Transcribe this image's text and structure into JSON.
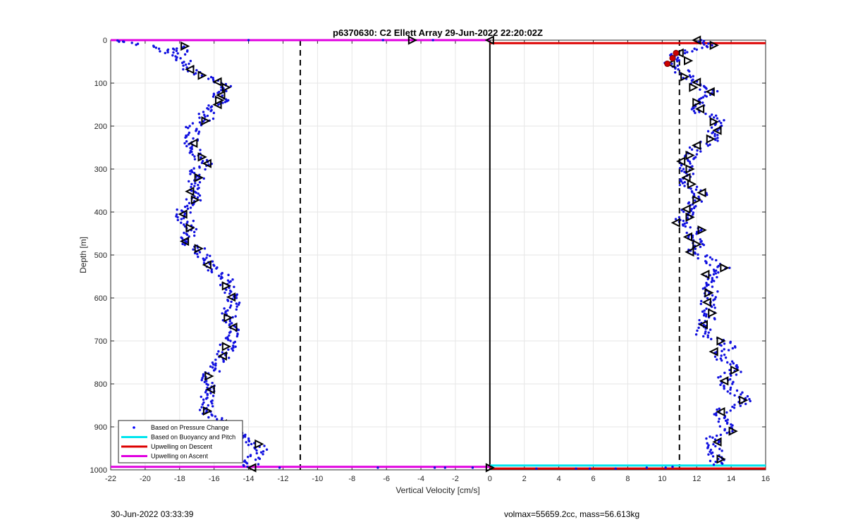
{
  "footer": {
    "left": "30-Jun-2022 03:33:39",
    "right": "volmax=55659.2cc, mass=56.613kg"
  },
  "chart_data": {
    "type": "scatter",
    "title": "p6370630: C2 Ellett Array 29-Jun-2022 22:20:02Z",
    "xlabel": "Vertical Velocity [cm/s]",
    "ylabel": "Depth [m]",
    "xlim": [
      -22,
      16
    ],
    "ylim": [
      0,
      1000
    ],
    "y_reversed": true,
    "grid": true,
    "x_ticks": [
      "-22",
      "-20",
      "-18",
      "-16",
      "-14",
      "-12",
      "-10",
      "-8",
      "-6",
      "-4",
      "-2",
      "0",
      "2",
      "4",
      "6",
      "8",
      "10",
      "12",
      "14",
      "16"
    ],
    "y_ticks": [
      "0",
      "100",
      "200",
      "300",
      "400",
      "500",
      "600",
      "700",
      "800",
      "900",
      "1000"
    ],
    "legend": {
      "placement": "bottom-left",
      "entries": [
        {
          "label": "Based on Pressure Change",
          "color": "#0000ff",
          "style": "dot"
        },
        {
          "label": "Based on Buoyancy and Pitch",
          "color": "#00e5ee",
          "style": "line"
        },
        {
          "label": "Upwelling on Descent",
          "color": "#dd0000",
          "style": "line"
        },
        {
          "label": "Upwelling on Ascent",
          "color": "#e000e0",
          "style": "line"
        }
      ]
    },
    "reference_lines": [
      {
        "x": -11,
        "style": "dashed",
        "color": "#000000"
      },
      {
        "x": 11,
        "style": "dashed",
        "color": "#000000"
      },
      {
        "x": 0,
        "style": "solid",
        "color": "#000000"
      }
    ],
    "horizontal_lines": [
      {
        "y": 0,
        "x": [
          -22,
          0
        ],
        "color": "#e000e0",
        "series": "Upwelling on Ascent"
      },
      {
        "y": 993,
        "x": [
          -22,
          0
        ],
        "color": "#e000e0",
        "series": "Upwelling on Ascent"
      },
      {
        "y": 7,
        "x": [
          0,
          16
        ],
        "color": "#dd0000",
        "series": "Upwelling on Descent"
      },
      {
        "y": 990,
        "x": [
          0,
          16
        ],
        "color": "#00e5ee",
        "series": "Based on Buoyancy and Pitch"
      },
      {
        "y": 997,
        "x": [
          0,
          16
        ],
        "color": "#dd0000",
        "series": "Upwelling on Descent"
      }
    ],
    "ascent_profile": [
      [
        -21.5,
        3
      ],
      [
        -21,
        4
      ],
      [
        -19,
        20
      ],
      [
        -18.6,
        30
      ],
      [
        -17.8,
        15
      ],
      [
        -18.2,
        40
      ],
      [
        -17.5,
        55
      ],
      [
        -17.4,
        70
      ],
      [
        -16.8,
        82
      ],
      [
        -15.8,
        92
      ],
      [
        -15.5,
        100
      ],
      [
        -15.4,
        112
      ],
      [
        -15.8,
        125
      ],
      [
        -15.6,
        140
      ],
      [
        -15.8,
        150
      ],
      [
        -16.4,
        165
      ],
      [
        -16.5,
        185
      ],
      [
        -17.2,
        200
      ],
      [
        -17.2,
        220
      ],
      [
        -17.3,
        240
      ],
      [
        -17.0,
        260
      ],
      [
        -16.7,
        275
      ],
      [
        -16.5,
        290
      ],
      [
        -17.0,
        305
      ],
      [
        -16.9,
        320
      ],
      [
        -17.3,
        335
      ],
      [
        -17.3,
        355
      ],
      [
        -17.2,
        375
      ],
      [
        -17.7,
        390
      ],
      [
        -17.9,
        410
      ],
      [
        -17.5,
        425
      ],
      [
        -17.4,
        440
      ],
      [
        -17.5,
        455
      ],
      [
        -17.6,
        470
      ],
      [
        -16.9,
        485
      ],
      [
        -16.6,
        500
      ],
      [
        -16.3,
        515
      ],
      [
        -16.4,
        525
      ],
      [
        -15.8,
        540
      ],
      [
        -15.3,
        555
      ],
      [
        -15.3,
        572
      ],
      [
        -15.0,
        590
      ],
      [
        -14.8,
        600
      ],
      [
        -15.0,
        620
      ],
      [
        -15.2,
        645
      ],
      [
        -14.8,
        668
      ],
      [
        -14.6,
        685
      ],
      [
        -15.2,
        700
      ],
      [
        -15.2,
        718
      ],
      [
        -15.5,
        735
      ],
      [
        -15.7,
        755
      ],
      [
        -16.3,
        780
      ],
      [
        -16.4,
        800
      ],
      [
        -16.2,
        813
      ],
      [
        -16.4,
        830
      ],
      [
        -16.3,
        850
      ],
      [
        -16.4,
        865
      ],
      [
        -15.8,
        880
      ],
      [
        -15.6,
        895
      ],
      [
        -14.8,
        910
      ],
      [
        -14.2,
        925
      ],
      [
        -13.6,
        940
      ],
      [
        -13.3,
        955
      ],
      [
        -13.6,
        970
      ],
      [
        -13.9,
        985
      ],
      [
        -13.8,
        995
      ]
    ],
    "ascent_markers": [
      [
        -17.7,
        14
      ],
      [
        -17.4,
        68
      ],
      [
        -16.7,
        82
      ],
      [
        -15.8,
        97
      ],
      [
        -15.3,
        110
      ],
      [
        -15.6,
        128
      ],
      [
        -15.7,
        140
      ],
      [
        -15.8,
        150
      ],
      [
        -16.5,
        188
      ],
      [
        -17.2,
        240
      ],
      [
        -16.7,
        272
      ],
      [
        -16.4,
        287
      ],
      [
        -16.9,
        320
      ],
      [
        -17.4,
        352
      ],
      [
        -17.1,
        372
      ],
      [
        -17.8,
        405
      ],
      [
        -17.4,
        437
      ],
      [
        -17.7,
        468
      ],
      [
        -16.9,
        485
      ],
      [
        -16.4,
        523
      ],
      [
        -15.3,
        572
      ],
      [
        -15.0,
        598
      ],
      [
        -15.2,
        646
      ],
      [
        -14.9,
        668
      ],
      [
        -15.3,
        713
      ],
      [
        -15.5,
        735
      ],
      [
        -16.3,
        782
      ],
      [
        -16.2,
        813
      ],
      [
        -16.4,
        863
      ],
      [
        -15.5,
        893
      ],
      [
        -13.4,
        940
      ],
      [
        -13.8,
        995
      ],
      [
        -4.5,
        0
      ],
      [
        0,
        0
      ],
      [
        0,
        995
      ]
    ],
    "descent_profile": [
      [
        12.2,
        0
      ],
      [
        12.7,
        8
      ],
      [
        13.0,
        14
      ],
      [
        11.7,
        20
      ],
      [
        11.3,
        28
      ],
      [
        10.8,
        35
      ],
      [
        10.6,
        45
      ],
      [
        10.4,
        55
      ],
      [
        11.1,
        68
      ],
      [
        11.3,
        82
      ],
      [
        11.6,
        92
      ],
      [
        12.0,
        105
      ],
      [
        12.6,
        115
      ],
      [
        13.0,
        125
      ],
      [
        12.5,
        135
      ],
      [
        12.3,
        150
      ],
      [
        12.0,
        165
      ],
      [
        13.0,
        180
      ],
      [
        13.5,
        195
      ],
      [
        12.8,
        212
      ],
      [
        12.9,
        232
      ],
      [
        12.0,
        250
      ],
      [
        11.7,
        268
      ],
      [
        11.4,
        285
      ],
      [
        11.5,
        300
      ],
      [
        11.4,
        318
      ],
      [
        11.4,
        335
      ],
      [
        11.9,
        350
      ],
      [
        12.3,
        360
      ],
      [
        11.8,
        380
      ],
      [
        11.5,
        395
      ],
      [
        11.3,
        410
      ],
      [
        11.1,
        425
      ],
      [
        12.1,
        440
      ],
      [
        11.5,
        455
      ],
      [
        12.2,
        470
      ],
      [
        11.7,
        490
      ],
      [
        12.6,
        510
      ],
      [
        13.5,
        530
      ],
      [
        13.0,
        545
      ],
      [
        12.8,
        565
      ],
      [
        12.8,
        585
      ],
      [
        12.6,
        605
      ],
      [
        12.7,
        625
      ],
      [
        12.7,
        645
      ],
      [
        12.4,
        665
      ],
      [
        12.4,
        685
      ],
      [
        13.5,
        700
      ],
      [
        13.9,
        715
      ],
      [
        13.2,
        730
      ],
      [
        13.8,
        750
      ],
      [
        14.2,
        770
      ],
      [
        13.7,
        785
      ],
      [
        13.7,
        800
      ],
      [
        14.3,
        820
      ],
      [
        14.8,
        840
      ],
      [
        13.6,
        860
      ],
      [
        13.4,
        875
      ],
      [
        13.5,
        890
      ],
      [
        14.0,
        910
      ],
      [
        13.0,
        925
      ],
      [
        13.0,
        945
      ],
      [
        13.1,
        960
      ],
      [
        13.2,
        975
      ],
      [
        13.0,
        990
      ]
    ],
    "descent_markers": [
      [
        12.0,
        0
      ],
      [
        13.0,
        12
      ],
      [
        11.0,
        30
      ],
      [
        11.5,
        48
      ],
      [
        10.5,
        55
      ],
      [
        11.3,
        85
      ],
      [
        12.0,
        98
      ],
      [
        11.8,
        110
      ],
      [
        12.8,
        120
      ],
      [
        12.0,
        145
      ],
      [
        12.2,
        160
      ],
      [
        13.0,
        190
      ],
      [
        13.2,
        210
      ],
      [
        12.8,
        230
      ],
      [
        12.0,
        245
      ],
      [
        11.6,
        268
      ],
      [
        11.1,
        282
      ],
      [
        11.6,
        300
      ],
      [
        11.4,
        320
      ],
      [
        11.7,
        335
      ],
      [
        12.3,
        355
      ],
      [
        12.0,
        372
      ],
      [
        11.4,
        393
      ],
      [
        11.6,
        412
      ],
      [
        10.8,
        425
      ],
      [
        12.3,
        442
      ],
      [
        11.5,
        458
      ],
      [
        12.0,
        475
      ],
      [
        11.6,
        493
      ],
      [
        13.6,
        530
      ],
      [
        12.5,
        545
      ],
      [
        12.7,
        588
      ],
      [
        12.6,
        610
      ],
      [
        12.9,
        635
      ],
      [
        12.4,
        662
      ],
      [
        13.4,
        700
      ],
      [
        13.0,
        725
      ],
      [
        14.2,
        768
      ],
      [
        13.6,
        793
      ],
      [
        14.7,
        838
      ],
      [
        13.4,
        865
      ],
      [
        14.1,
        910
      ],
      [
        13.2,
        935
      ],
      [
        13.4,
        975
      ]
    ],
    "red_markers": [
      [
        10.8,
        30
      ],
      [
        10.6,
        42
      ],
      [
        10.3,
        55
      ]
    ]
  }
}
